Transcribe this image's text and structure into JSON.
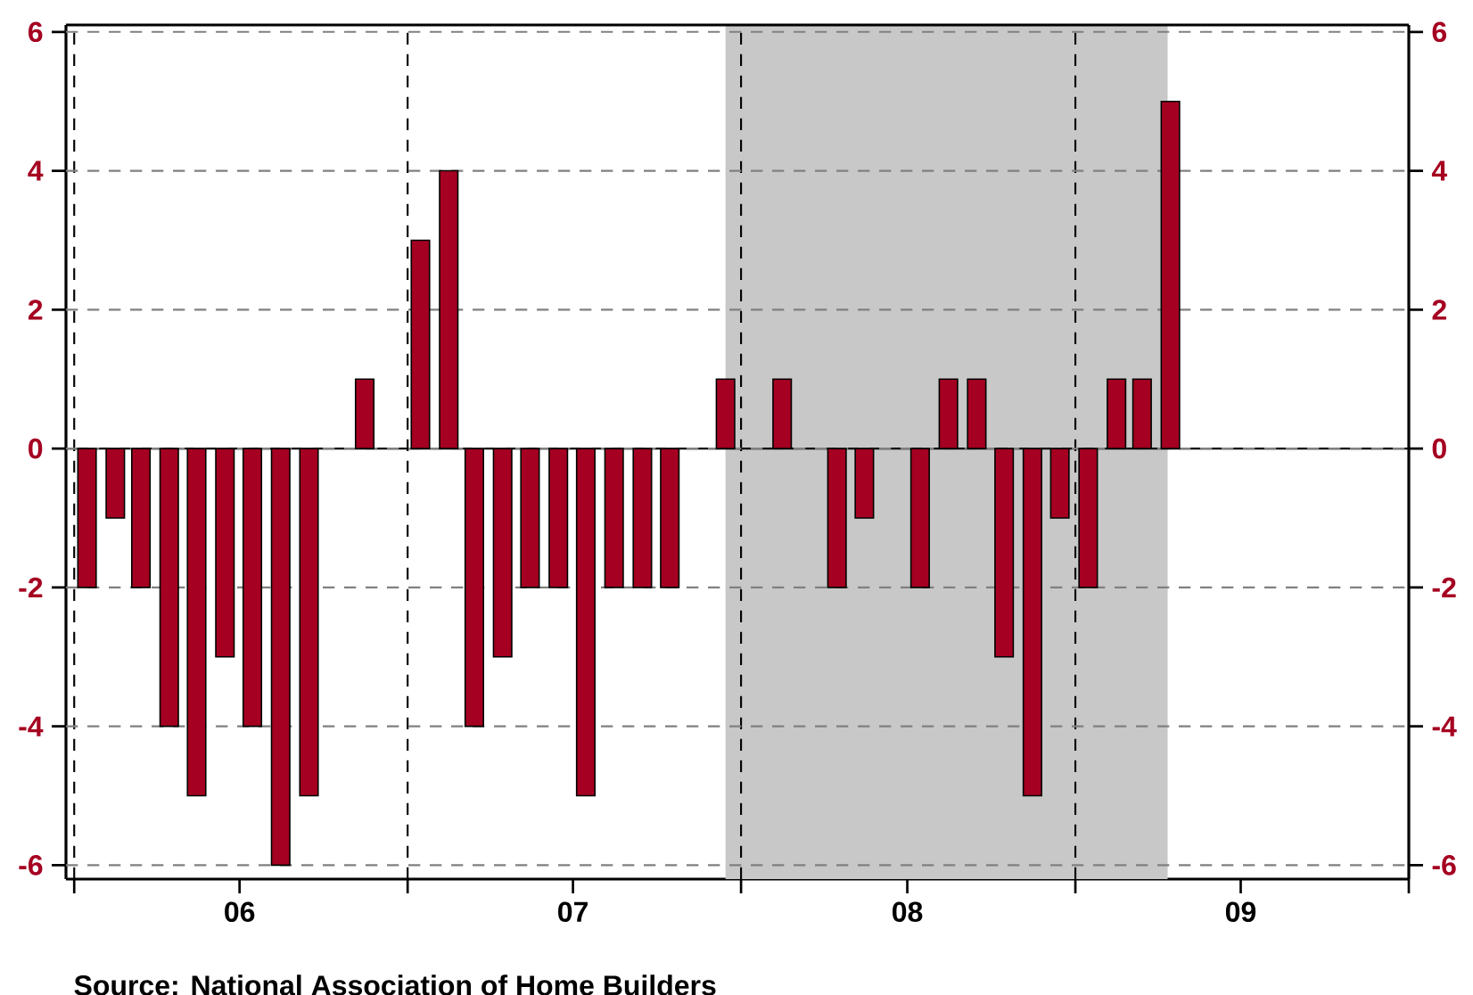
{
  "chart_data": {
    "type": "bar",
    "x": [
      "2006-01-15",
      "2006-02-15",
      "2006-03-15",
      "2006-04-15",
      "2006-05-15",
      "2006-06-15",
      "2006-07-15",
      "2006-08-15",
      "2006-09-15",
      "2006-10-15",
      "2006-11-15",
      "2006-12-15",
      "2007-01-15",
      "2007-02-15",
      "2007-03-15",
      "2007-04-15",
      "2007-05-15",
      "2007-06-15",
      "2007-07-15",
      "2007-08-15",
      "2007-09-15",
      "2007-10-15",
      "2007-11-15",
      "2007-12-15",
      "2008-01-15",
      "2008-02-15",
      "2008-03-15",
      "2008-04-15",
      "2008-05-15",
      "2008-06-15",
      "2008-07-15",
      "2008-08-15",
      "2008-09-15",
      "2008-10-15",
      "2008-11-15",
      "2008-12-15",
      "2009-01-15",
      "2009-02-15",
      "2009-03-15",
      "2009-04-15"
    ],
    "values": [
      -2,
      -1,
      -2,
      -4,
      -5,
      -3,
      -4,
      -6,
      -5,
      0,
      1,
      0,
      3,
      4,
      -4,
      -3,
      -2,
      -2,
      -5,
      -2,
      -2,
      -2,
      0,
      1,
      0,
      1,
      0,
      -2,
      -1,
      0,
      -2,
      1,
      1,
      -3,
      -5,
      -1,
      -2,
      1,
      1,
      5
    ],
    "color": "#a50021",
    "xlim": [
      "2005-12-23",
      "2010-01-01"
    ],
    "xticks": [
      {
        "value": "2006-01-01",
        "label": null
      },
      {
        "value": "2006-07-01",
        "label": "06"
      },
      {
        "value": "2007-01-01",
        "label": null
      },
      {
        "value": "2007-07-01",
        "label": "07"
      },
      {
        "value": "2008-01-01",
        "label": null
      },
      {
        "value": "2008-07-01",
        "label": "08"
      },
      {
        "value": "2009-01-01",
        "label": null
      },
      {
        "value": "2009-07-01",
        "label": "09"
      },
      {
        "value": "2010-01-01",
        "label": null
      }
    ],
    "ylim": [
      -6.2,
      6.1
    ],
    "yticks": [
      -6,
      -4,
      -2,
      0,
      2,
      4,
      6
    ],
    "y2lim": [
      -6.2,
      6.1
    ],
    "y2ticks": [
      -6,
      -4,
      -2,
      0,
      2,
      4,
      6
    ],
    "grid": "y",
    "ref_lines": [
      {
        "axis": "y",
        "value": 0,
        "line_style": "solid",
        "color": "#000000"
      },
      {
        "axis": "x",
        "value": "2006-01-01",
        "line_style": "dashed",
        "color": "#000000"
      },
      {
        "axis": "x",
        "value": "2007-01-01",
        "line_style": "dashed",
        "color": "#000000"
      },
      {
        "axis": "x",
        "value": "2008-01-01",
        "line_style": "dashed",
        "color": "#000000"
      },
      {
        "axis": "x",
        "value": "2009-01-01",
        "line_style": "dashed",
        "color": "#000000"
      }
    ],
    "bands": [
      {
        "axis": "x",
        "from": "2007-12-15",
        "to": "2009-04-12",
        "color": "#c8c8c8"
      }
    ],
    "annotations": [
      "Source:  National Association of Home Builders"
    ]
  }
}
